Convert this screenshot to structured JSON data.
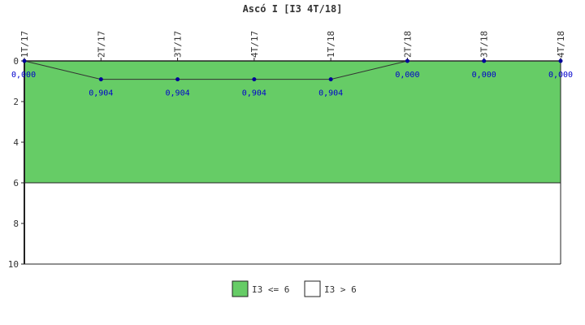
{
  "chart_data": {
    "type": "line",
    "title": "Ascó I [I3 4T/18]",
    "categories": [
      "1T/17",
      "2T/17",
      "3T/17",
      "4T/17",
      "1T/18",
      "2T/18",
      "3T/18",
      "4T/18"
    ],
    "series": [
      {
        "values": [
          0,
          0.904,
          0.904,
          0.904,
          0.904,
          0,
          0,
          0
        ],
        "labels": [
          "0,000",
          "0,904",
          "0,904",
          "0,904",
          "0,904",
          "0,000",
          "0,000",
          "0,000"
        ],
        "color": "#333333",
        "marker_color": "#000099"
      }
    ],
    "yticks": [
      "0",
      "2",
      "4",
      "6",
      "8",
      "10"
    ],
    "ylim": [
      0,
      10
    ],
    "y_inverted": true,
    "threshold": 6,
    "bands": [
      {
        "name": "I3 <= 6",
        "from": 0,
        "to": 6,
        "color": "#66cc66"
      },
      {
        "name": "I3 > 6",
        "from": 6,
        "to": 10,
        "color": "#ffffff"
      }
    ],
    "legend_position": "bottom-center",
    "grid": false
  }
}
